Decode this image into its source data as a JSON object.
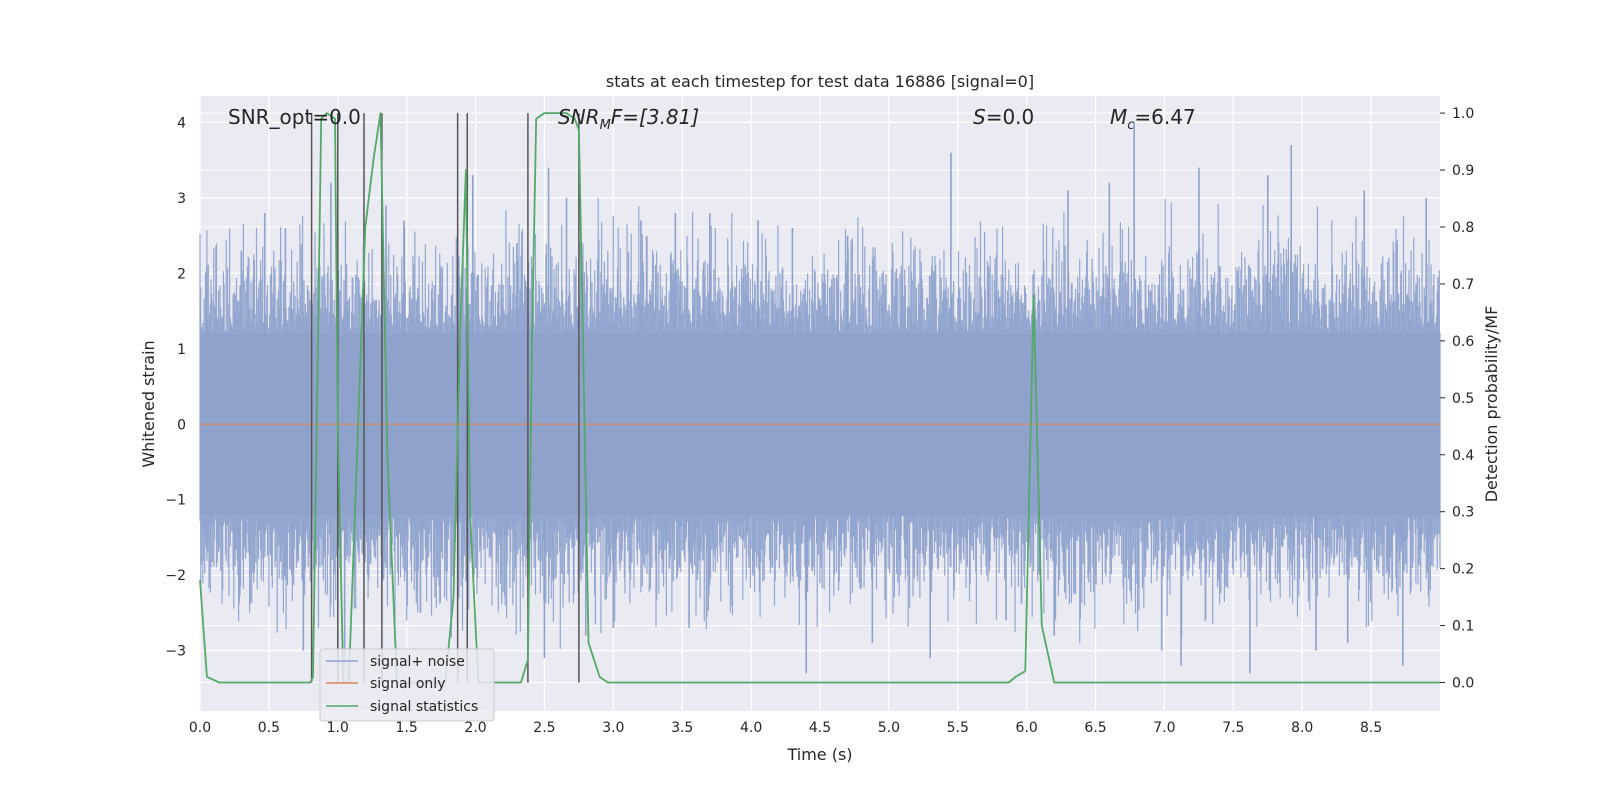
{
  "chart_data": {
    "type": "line",
    "title": "stats at each timestep for test data 16886 [signal=0]",
    "xlabel": "Time (s)",
    "ylabel_left": "Whitened strain",
    "ylabel_right": "Detection probability/MF",
    "xlim": [
      0.0,
      9.0
    ],
    "ylim_left": [
      -3.8,
      4.35
    ],
    "ylim_right": [
      -0.05,
      1.03
    ],
    "x_ticks": [
      "0.0",
      "0.5",
      "1.0",
      "1.5",
      "2.0",
      "2.5",
      "3.0",
      "3.5",
      "4.0",
      "4.5",
      "5.0",
      "5.5",
      "6.0",
      "6.5",
      "7.0",
      "7.5",
      "8.0",
      "8.5"
    ],
    "y_left_ticks": [
      "4",
      "3",
      "2",
      "1",
      "0",
      "−1",
      "−2",
      "−3"
    ],
    "y_left_tick_values": [
      4,
      3,
      2,
      1,
      0,
      -1,
      -2,
      -3
    ],
    "y_right_ticks": [
      "1.0",
      "0.9",
      "0.8",
      "0.7",
      "0.6",
      "0.5",
      "0.4",
      "0.3",
      "0.2",
      "0.1",
      "0.0"
    ],
    "y_right_tick_values": [
      1.0,
      0.9,
      0.8,
      0.7,
      0.6,
      0.5,
      0.4,
      0.3,
      0.2,
      0.1,
      0.0
    ],
    "grid": true,
    "legend_location": "lower left",
    "annotations": {
      "snr_opt": "SNR_opt=0.0",
      "snr_mf_sym": "SNR",
      "snr_mf_sub": "M",
      "snr_mf_rest": "F=[3.81]",
      "s_sym": "S",
      "s_rest": "=0.0",
      "mc_sym": "M",
      "mc_sub": "c",
      "mc_rest": "=6.47"
    },
    "series": [
      {
        "name": "signal+ noise",
        "color": "#8ea2cc",
        "axis": "left",
        "description_values": "noise_band",
        "band_envelope": {
          "upper_typical": 1.8,
          "lower_typical": -1.8
        },
        "peaks": [
          [
            0.05,
            2.1
          ],
          [
            0.3,
            2.3
          ],
          [
            0.47,
            2.8
          ],
          [
            0.62,
            2.6
          ],
          [
            0.95,
            3.2
          ],
          [
            1.35,
            2.9
          ],
          [
            1.48,
            2.7
          ],
          [
            1.98,
            3.3
          ],
          [
            2.3,
            2.4
          ],
          [
            2.53,
            3.4
          ],
          [
            2.66,
            3.0
          ],
          [
            3.2,
            2.7
          ],
          [
            3.45,
            2.8
          ],
          [
            3.7,
            2.8
          ],
          [
            4.05,
            2.7
          ],
          [
            4.3,
            2.6
          ],
          [
            4.7,
            2.5
          ],
          [
            5.45,
            3.6
          ],
          [
            6.3,
            3.1
          ],
          [
            6.6,
            3.2
          ],
          [
            6.78,
            4.0
          ],
          [
            7.25,
            3.4
          ],
          [
            7.75,
            3.3
          ],
          [
            7.92,
            3.7
          ],
          [
            8.45,
            3.1
          ],
          [
            8.9,
            3.0
          ],
          [
            0.75,
            -3.0
          ],
          [
            1.05,
            -3.2
          ],
          [
            1.6,
            -2.5
          ],
          [
            2.5,
            -3.1
          ],
          [
            2.8,
            -2.8
          ],
          [
            3.0,
            -2.7
          ],
          [
            3.55,
            -2.7
          ],
          [
            4.4,
            -3.3
          ],
          [
            4.88,
            -2.9
          ],
          [
            5.3,
            -3.1
          ],
          [
            5.85,
            -2.6
          ],
          [
            6.2,
            -2.8
          ],
          [
            6.98,
            -3.0
          ],
          [
            7.12,
            -3.2
          ],
          [
            7.62,
            -3.3
          ],
          [
            8.1,
            -3.0
          ],
          [
            8.33,
            -2.9
          ],
          [
            8.73,
            -3.2
          ]
        ]
      },
      {
        "name": "signal only",
        "color": "#dd8452",
        "axis": "left",
        "x": [
          0.0,
          9.0
        ],
        "y": [
          0.0,
          0.0
        ]
      },
      {
        "name": "signal statistics",
        "color": "#55a868",
        "axis": "right",
        "x": [
          0.0,
          0.05,
          0.14,
          0.8,
          0.82,
          0.88,
          0.92,
          0.98,
          1.0,
          1.04,
          1.08,
          1.2,
          1.26,
          1.31,
          1.36,
          1.43,
          1.78,
          1.84,
          1.89,
          1.93,
          1.96,
          2.02,
          2.1,
          2.33,
          2.38,
          2.41,
          2.44,
          2.5,
          2.57,
          2.66,
          2.72,
          2.75,
          2.78,
          2.82,
          2.9,
          2.96,
          5.87,
          5.92,
          5.99,
          6.05,
          6.11,
          6.2,
          9.0
        ],
        "y": [
          0.18,
          0.01,
          0.0,
          0.0,
          0.01,
          0.99,
          1.0,
          0.99,
          0.45,
          0.0,
          0.0,
          0.8,
          0.92,
          1.0,
          0.4,
          0.0,
          0.0,
          0.15,
          0.63,
          0.9,
          0.3,
          0.0,
          0.0,
          0.0,
          0.04,
          0.6,
          0.99,
          1.0,
          1.0,
          1.0,
          0.99,
          0.97,
          0.6,
          0.07,
          0.01,
          0.0,
          0.0,
          0.01,
          0.02,
          0.68,
          0.1,
          0.0,
          0.0
        ]
      }
    ],
    "vertical_lines": {
      "color": "#555555",
      "x": [
        0.81,
        1.0,
        1.19,
        1.32,
        1.87,
        1.94,
        2.38,
        2.75
      ],
      "top": 1.0,
      "bottom": 0.0
    }
  },
  "legend": {
    "items": [
      {
        "label": "signal+ noise",
        "color": "#8ea2cc"
      },
      {
        "label": "signal only",
        "color": "#dd8452"
      },
      {
        "label": "signal statistics",
        "color": "#55a868"
      }
    ]
  }
}
